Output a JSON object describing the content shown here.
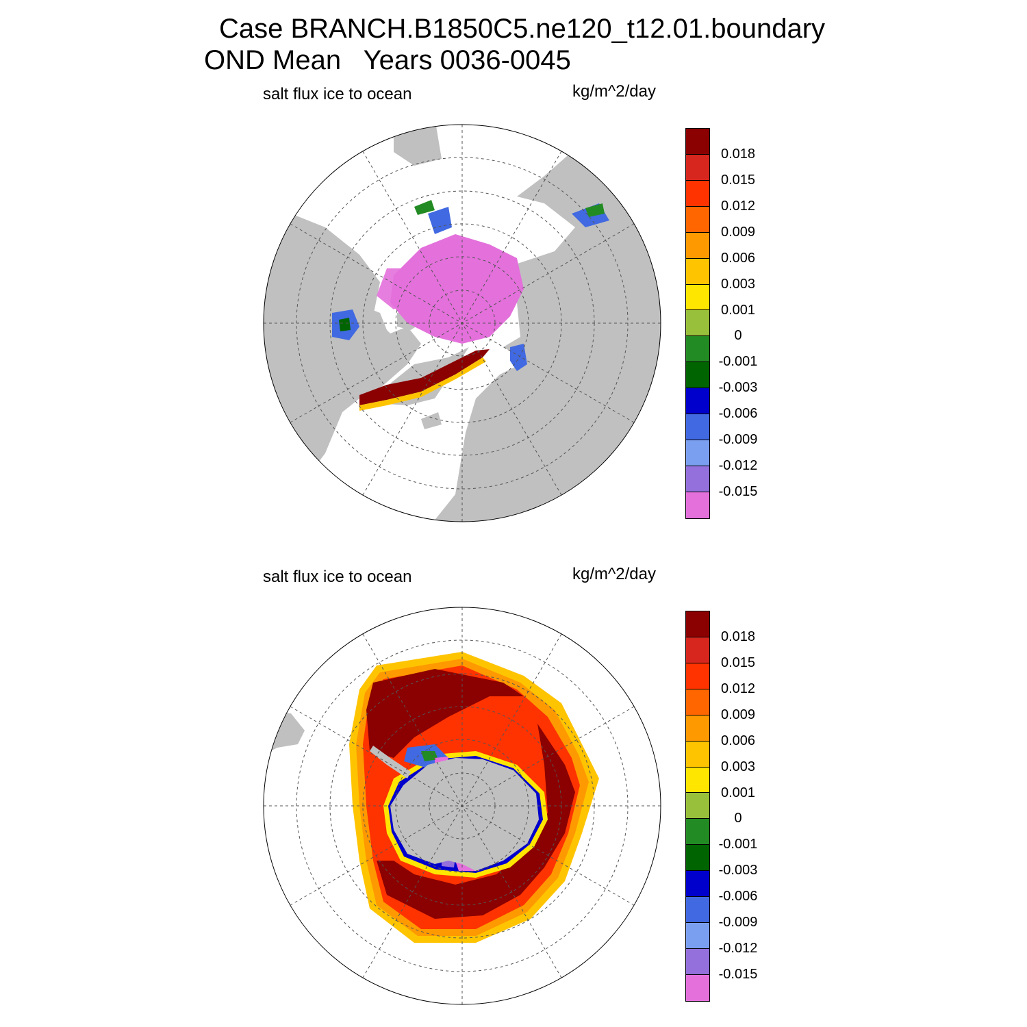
{
  "title": {
    "line1": "Case BRANCH.B1850C5.ne120_t12.01.boundary",
    "line2": "OND Mean   Years 0036-0045"
  },
  "panels": [
    {
      "id": "north",
      "left_label": "salt flux ice to ocean",
      "right_label": "kg/m^2/day",
      "hemisphere": "north"
    },
    {
      "id": "south",
      "left_label": "salt flux ice to ocean",
      "right_label": "kg/m^2/day",
      "hemisphere": "south"
    }
  ],
  "colorbar": {
    "colors": [
      "#8b0000",
      "#d7261e",
      "#ff3300",
      "#ff6600",
      "#ff9900",
      "#ffc400",
      "#ffe600",
      "#99c03a",
      "#238b23",
      "#006400",
      "#0000cd",
      "#4169e1",
      "#7b9ff0",
      "#9370db",
      "#e370db"
    ],
    "labels": [
      "0.018",
      "0.015",
      "0.012",
      "0.009",
      "0.006",
      "0.003",
      "0.001",
      "0",
      "-0.001",
      "-0.003",
      "-0.006",
      "-0.009",
      "-0.012",
      "-0.015"
    ]
  },
  "colors": {
    "land": "#c0c0c0",
    "ocean": "#ffffff",
    "grid": "#555555"
  }
}
